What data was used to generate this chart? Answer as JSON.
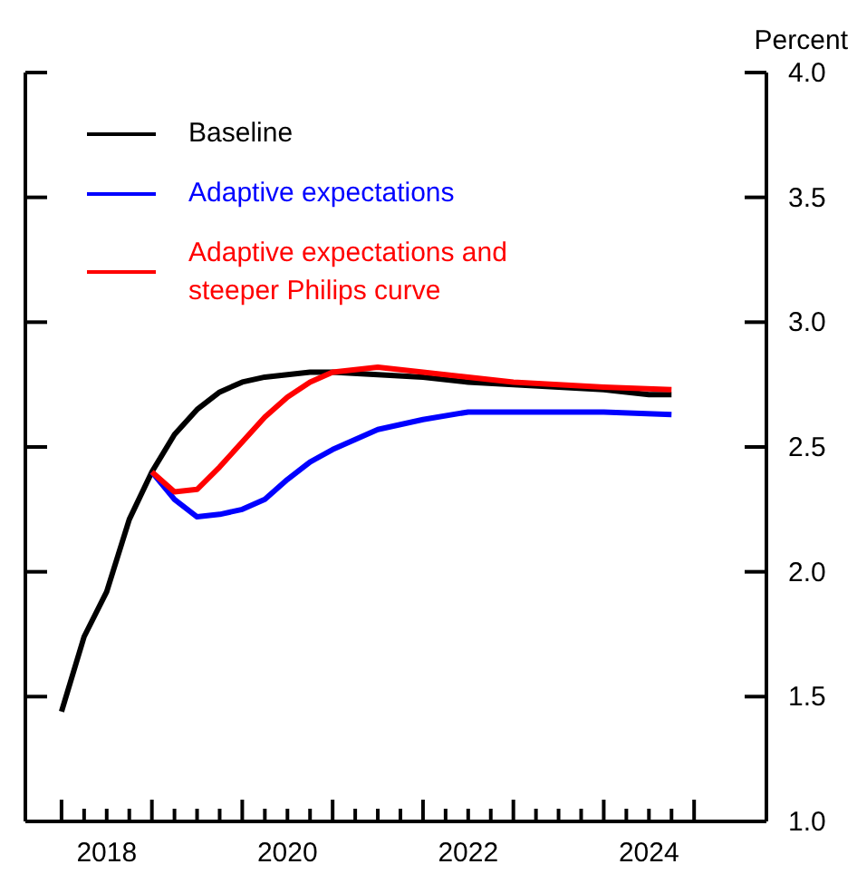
{
  "chart_data": {
    "type": "line",
    "ylabel": "Percent",
    "legend": "top left",
    "grid": false,
    "marker": "none",
    "xlim": [
      2017.6,
      2025.8
    ],
    "ylim": [
      1.0,
      4.0
    ],
    "yticks": [
      {
        "value": 1,
        "label": "1.0"
      },
      1.5,
      {
        "value": 2,
        "label": "2.0"
      },
      2.5,
      {
        "value": 3,
        "label": "3.0"
      },
      3.5,
      {
        "value": 4,
        "label": "4.0"
      }
    ],
    "xticks": [
      {
        "value": 2018,
        "label": null
      },
      {
        "value": 2018.25,
        "label": null
      },
      {
        "value": 2018.5,
        "label": "2018"
      },
      {
        "value": 2018.75,
        "label": null
      },
      {
        "value": 2019,
        "label": null
      },
      {
        "value": 2019.25,
        "label": null
      },
      {
        "value": 2019.5,
        "label": null
      },
      {
        "value": 2019.75,
        "label": null
      },
      {
        "value": 2020,
        "label": null
      },
      {
        "value": 2020.25,
        "label": null
      },
      {
        "value": 2020.5,
        "label": "2020"
      },
      {
        "value": 2020.75,
        "label": null
      },
      {
        "value": 2021,
        "label": null
      },
      {
        "value": 2021.25,
        "label": null
      },
      {
        "value": 2021.5,
        "label": null
      },
      {
        "value": 2021.75,
        "label": null
      },
      {
        "value": 2022,
        "label": null
      },
      {
        "value": 2022.25,
        "label": null
      },
      {
        "value": 2022.5,
        "label": "2022"
      },
      {
        "value": 2022.75,
        "label": null
      },
      {
        "value": 2023,
        "label": null
      },
      {
        "value": 2023.25,
        "label": null
      },
      {
        "value": 2023.5,
        "label": null
      },
      {
        "value": 2023.75,
        "label": null
      },
      {
        "value": 2024,
        "label": null
      },
      {
        "value": 2024.25,
        "label": null
      },
      {
        "value": 2024.5,
        "label": "2024"
      },
      {
        "value": 2024.75,
        "label": null
      },
      {
        "value": 2025,
        "label": null
      }
    ],
    "series": [
      {
        "name": "Baseline",
        "color": "#000000",
        "x": [
          2018,
          2018.25,
          2018.5,
          2018.75,
          2019,
          2019.25,
          2019.5,
          2019.75,
          2020,
          2020.25,
          2020.5,
          2020.75,
          2021,
          2021.5,
          2022,
          2022.5,
          2023,
          2023.5,
          2024,
          2024.5,
          2024.75
        ],
        "values": [
          1.44,
          1.74,
          1.92,
          2.21,
          2.4,
          2.55,
          2.65,
          2.72,
          2.76,
          2.78,
          2.79,
          2.8,
          2.8,
          2.79,
          2.78,
          2.76,
          2.75,
          2.74,
          2.73,
          2.71,
          2.71
        ]
      },
      {
        "name": "Adaptive expectations",
        "color": "#0000ff",
        "x": [
          2019,
          2019.25,
          2019.5,
          2019.75,
          2020,
          2020.25,
          2020.5,
          2020.75,
          2021,
          2021.25,
          2021.5,
          2022,
          2022.5,
          2023,
          2023.5,
          2024,
          2024.75
        ],
        "values": [
          2.4,
          2.29,
          2.22,
          2.23,
          2.25,
          2.29,
          2.37,
          2.44,
          2.49,
          2.53,
          2.57,
          2.61,
          2.64,
          2.64,
          2.64,
          2.64,
          2.63
        ]
      },
      {
        "name": "Adaptive expectations and steeper Philips curve",
        "color": "#ff0000",
        "x": [
          2019,
          2019.25,
          2019.5,
          2019.75,
          2020,
          2020.25,
          2020.5,
          2020.75,
          2021,
          2021.5,
          2022,
          2022.5,
          2023,
          2023.5,
          2024,
          2024.75
        ],
        "values": [
          2.4,
          2.32,
          2.33,
          2.42,
          2.52,
          2.62,
          2.7,
          2.76,
          2.8,
          2.82,
          2.8,
          2.78,
          2.76,
          2.75,
          2.74,
          2.73
        ]
      }
    ]
  }
}
